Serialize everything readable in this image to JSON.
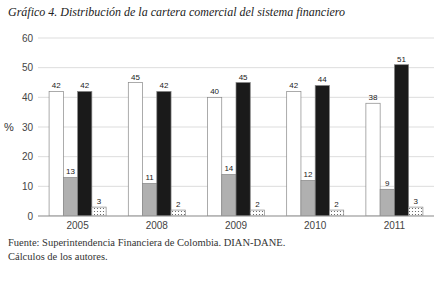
{
  "chart_data": {
    "type": "bar",
    "title": "Gráfico 4. Distribución de la cartera comercial del sistema financiero",
    "categories": [
      "2005",
      "2008",
      "2009",
      "2010",
      "2011"
    ],
    "series": [
      {
        "color": "#ffffff",
        "values": [
          42,
          45,
          40,
          42,
          38
        ]
      },
      {
        "color": "#b0b0b0",
        "values": [
          13,
          11,
          14,
          12,
          9
        ]
      },
      {
        "color": "#1a1a1a",
        "values": [
          42,
          42,
          45,
          44,
          51
        ]
      },
      {
        "color": "#ffffff",
        "marker": "dots",
        "values": [
          3,
          2,
          2,
          2,
          3
        ]
      }
    ],
    "ylabel": "%",
    "ylim": [
      0,
      60
    ],
    "yticks": [
      0,
      10,
      20,
      30,
      40,
      50,
      60
    ],
    "grid": true,
    "data_labels": true,
    "annotations": [
      "Fuente: Superintendencia Financiera de Colombia. DIAN-DANE.",
      "Cálculos de los autores."
    ]
  }
}
